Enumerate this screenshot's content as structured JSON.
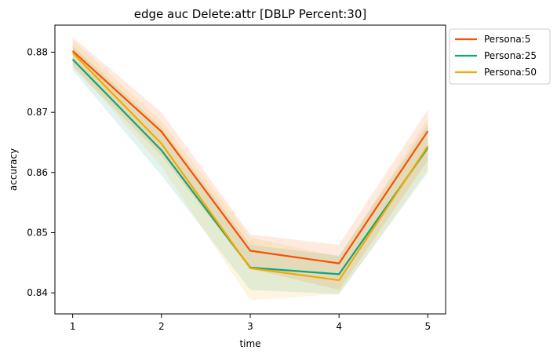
{
  "chart_data": {
    "type": "line",
    "title": "edge auc Delete:attr [DBLP Percent:30]",
    "xlabel": "time",
    "ylabel": "accuracy",
    "x": [
      1,
      2,
      3,
      4,
      5
    ],
    "xticks": [
      "1",
      "2",
      "3",
      "4",
      "5"
    ],
    "yticks": [
      "0.84",
      "0.85",
      "0.86",
      "0.87",
      "0.88"
    ],
    "xlim": [
      0.8,
      5.2
    ],
    "ylim": [
      0.8365,
      0.8845
    ],
    "grid": false,
    "legend_position": "upper right, outside plot",
    "series": [
      {
        "name": "Persona:5",
        "color": "#fc4f00",
        "values": [
          0.8802,
          0.8668,
          0.847,
          0.8449,
          0.8669
        ],
        "band_lower": [
          0.8775,
          0.8628,
          0.844,
          0.8405,
          0.862
        ],
        "band_upper": [
          0.8825,
          0.87,
          0.8497,
          0.848,
          0.8705
        ]
      },
      {
        "name": "Persona:25",
        "color": "#11a579",
        "values": [
          0.8788,
          0.8637,
          0.8442,
          0.8431,
          0.8641
        ],
        "band_lower": [
          0.877,
          0.8595,
          0.8405,
          0.8398,
          0.86
        ],
        "band_upper": [
          0.881,
          0.8675,
          0.848,
          0.8462,
          0.868
        ]
      },
      {
        "name": "Persona:50",
        "color": "#f2a900",
        "values": [
          0.8799,
          0.8648,
          0.8441,
          0.8421,
          0.8644
        ],
        "band_lower": [
          0.878,
          0.861,
          0.8388,
          0.8398,
          0.8605
        ],
        "band_upper": [
          0.882,
          0.8685,
          0.8492,
          0.846,
          0.869
        ]
      }
    ]
  }
}
